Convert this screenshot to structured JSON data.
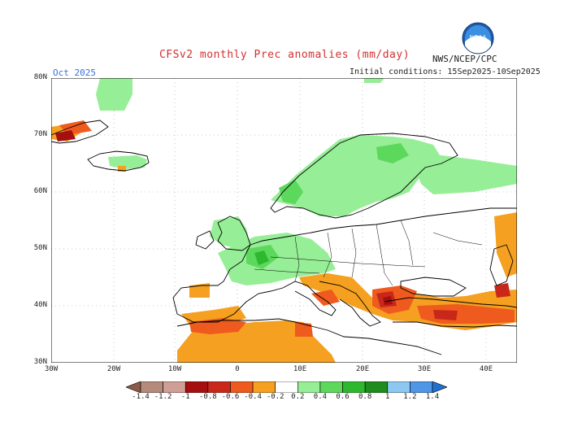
{
  "header": {
    "title": "CFSv2 monthly Prec anomalies (mm/day)",
    "agency": "NWS/NCEP/CPC",
    "month": "Oct 2025",
    "initial_conditions": "Initial conditions: 15Sep2025-10Sep2025",
    "logo_text": "NOAA"
  },
  "axes": {
    "lat_labels": [
      "80N",
      "70N",
      "60N",
      "50N",
      "40N",
      "30N"
    ],
    "lon_labels": [
      "30W",
      "20W",
      "10W",
      "0",
      "10E",
      "20E",
      "30E",
      "40E"
    ]
  },
  "colorbar": {
    "labels": [
      "-1.4",
      "-1.2",
      "-1",
      "-0.8",
      "-0.6",
      "-0.4",
      "-0.2",
      "0.2",
      "0.4",
      "0.6",
      "0.8",
      "1",
      "1.2",
      "1.4"
    ],
    "colors": [
      "#8b5a4a",
      "#b48a7a",
      "#cf9e96",
      "#a50f0f",
      "#c8281a",
      "#ef5a1e",
      "#f5a020",
      "#ffffff",
      "#96ee96",
      "#5cd85c",
      "#2eb82e",
      "#1e8c1e",
      "#8cc8f0",
      "#4f96e6",
      "#2070d0"
    ]
  },
  "map_colors": {
    "land_fill": "#ffffff",
    "ocean_fill": "#ffffff",
    "coast": "#000000",
    "grid": "#b0b0b0"
  }
}
